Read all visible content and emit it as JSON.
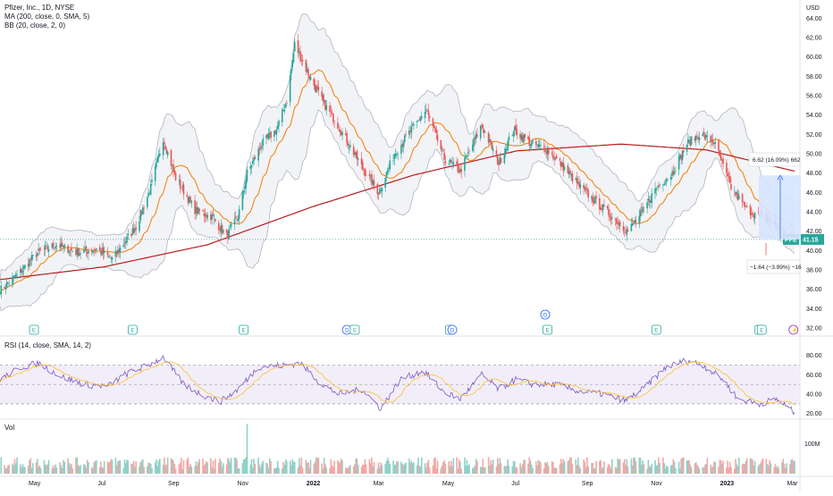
{
  "header": {
    "symbol_title": "Pfizer, Inc., 1D, NYSE",
    "indicators": [
      "MA (200, close, 0, SMA, 5)",
      "BB (20, close, 2, 0)"
    ],
    "currency": "USD"
  },
  "rsi_pane": {
    "title": "RSI (14, close, SMA, 14, 2)",
    "ticks": [
      "80.00",
      "60.00",
      "40.00",
      "20.00"
    ]
  },
  "volume_pane": {
    "title": "Vol",
    "tick": "100M"
  },
  "price_badge": {
    "symbol": "PFE",
    "value": "41.15"
  },
  "measure": {
    "top_label": "6.62 (16.09%) 662",
    "bottom_label": "−1.64 (−3.99%) −16"
  },
  "event_markers": [
    {
      "type": "E",
      "date": "2021-05-01"
    },
    {
      "type": "E",
      "date": "2021-07-27"
    },
    {
      "type": "E",
      "date": "2021-11-02"
    },
    {
      "type": "D",
      "date": "2022-02-01"
    },
    {
      "type": "E",
      "date": "2022-02-08"
    },
    {
      "type": "E",
      "date": "2022-05-03"
    },
    {
      "type": "D",
      "date": "2022-05-05"
    },
    {
      "type": "D",
      "date": "2022-07-26"
    },
    {
      "type": "E",
      "date": "2022-07-28"
    },
    {
      "type": "E",
      "date": "2022-11-01"
    },
    {
      "type": "E",
      "date": "2023-01-31"
    },
    {
      "type": "E",
      "date": "2023-02-02"
    },
    {
      "type": "split",
      "date": "2023-03-02"
    }
  ],
  "colors": {
    "up": "#26a69a",
    "down": "#ef5350",
    "ma": "#b71c1c",
    "bb_basis": "#f57c00",
    "bb_band": "#b2b5be",
    "rsi_line": "#7e57c2",
    "rsi_ma": "#fbc02d",
    "rsi_zone": "#ede7f6",
    "measure_fill": "#d6e4ff",
    "measure_line": "#2962ff",
    "current_line": "#26a69a",
    "axis_text": "#131722",
    "grid": "#f0f3fa"
  },
  "chart_data": {
    "type": "candlestick",
    "title": "Pfizer, Inc., 1D, NYSE",
    "x_ticks": [
      "May",
      "Jul",
      "Sep",
      "Nov",
      "2022",
      "Mar",
      "May",
      "Jul",
      "Sep",
      "Nov",
      "2023",
      "Mar"
    ],
    "x_range": [
      "2021-04-01",
      "2023-03-03"
    ],
    "price_axis": {
      "ticks": [
        "32.00",
        "34.00",
        "36.00",
        "38.00",
        "40.00",
        "42.00",
        "44.00",
        "46.00",
        "48.00",
        "50.00",
        "52.00",
        "54.00",
        "56.00",
        "58.00",
        "60.00",
        "62.00",
        "64.00"
      ],
      "ylim": [
        32,
        64.5
      ]
    },
    "price_keypoints": [
      [
        "2021-04-01",
        35.9
      ],
      [
        "2021-04-20",
        37.9
      ],
      [
        "2021-05-03",
        39.7
      ],
      [
        "2021-05-20",
        40.6
      ],
      [
        "2021-06-08",
        39.8
      ],
      [
        "2021-06-25",
        40.2
      ],
      [
        "2021-07-09",
        39.1
      ],
      [
        "2021-07-30",
        42.5
      ],
      [
        "2021-08-12",
        46.5
      ],
      [
        "2021-08-23",
        51.6
      ],
      [
        "2021-09-03",
        47.5
      ],
      [
        "2021-09-20",
        44.2
      ],
      [
        "2021-10-05",
        43.5
      ],
      [
        "2021-10-18",
        41.5
      ],
      [
        "2021-10-28",
        43.5
      ],
      [
        "2021-11-05",
        48.0
      ],
      [
        "2021-11-18",
        51.0
      ],
      [
        "2021-12-01",
        52.5
      ],
      [
        "2021-12-10",
        55.5
      ],
      [
        "2021-12-17",
        61.3
      ],
      [
        "2021-12-28",
        58.5
      ],
      [
        "2022-01-10",
        55.5
      ],
      [
        "2022-01-25",
        52.8
      ],
      [
        "2022-02-15",
        48.5
      ],
      [
        "2022-03-01",
        46.0
      ],
      [
        "2022-03-15",
        50.0
      ],
      [
        "2022-03-30",
        52.5
      ],
      [
        "2022-04-12",
        54.5
      ],
      [
        "2022-04-28",
        49.5
      ],
      [
        "2022-05-12",
        48.2
      ],
      [
        "2022-05-31",
        53.0
      ],
      [
        "2022-06-15",
        49.0
      ],
      [
        "2022-06-28",
        52.5
      ],
      [
        "2022-07-14",
        51.0
      ],
      [
        "2022-07-27",
        50.5
      ],
      [
        "2022-08-12",
        48.5
      ],
      [
        "2022-08-26",
        46.5
      ],
      [
        "2022-09-09",
        45.0
      ],
      [
        "2022-09-23",
        43.5
      ],
      [
        "2022-10-07",
        42.0
      ],
      [
        "2022-10-17",
        43.5
      ],
      [
        "2022-11-01",
        46.5
      ],
      [
        "2022-11-15",
        48.0
      ],
      [
        "2022-11-28",
        51.0
      ],
      [
        "2022-12-09",
        52.0
      ],
      [
        "2022-12-22",
        51.2
      ],
      [
        "2023-01-06",
        46.5
      ],
      [
        "2023-01-20",
        44.2
      ],
      [
        "2023-02-03",
        43.5
      ],
      [
        "2023-02-17",
        42.5
      ],
      [
        "2023-03-02",
        41.15
      ]
    ],
    "ma_200_keypoints": [
      [
        "2021-04-01",
        37.0
      ],
      [
        "2021-07-01",
        38.3
      ],
      [
        "2021-10-01",
        40.6
      ],
      [
        "2022-01-01",
        44.5
      ],
      [
        "2022-04-01",
        47.8
      ],
      [
        "2022-07-01",
        50.3
      ],
      [
        "2022-10-01",
        51.0
      ],
      [
        "2022-12-15",
        50.4
      ],
      [
        "2023-03-03",
        48.2
      ]
    ],
    "bb_width": 2.2,
    "rsi": {
      "ylim": [
        17,
        87
      ],
      "upper": 70,
      "lower": 30,
      "mid": 50,
      "keypoints": [
        [
          "2021-04-01",
          55
        ],
        [
          "2021-04-20",
          68
        ],
        [
          "2021-05-05",
          72
        ],
        [
          "2021-05-25",
          58
        ],
        [
          "2021-06-15",
          50
        ],
        [
          "2021-07-05",
          48
        ],
        [
          "2021-07-20",
          60
        ],
        [
          "2021-08-10",
          70
        ],
        [
          "2021-08-23",
          78
        ],
        [
          "2021-09-10",
          50
        ],
        [
          "2021-09-25",
          40
        ],
        [
          "2021-10-12",
          32
        ],
        [
          "2021-10-28",
          45
        ],
        [
          "2021-11-15",
          68
        ],
        [
          "2021-12-10",
          70
        ],
        [
          "2021-12-22",
          72
        ],
        [
          "2022-01-10",
          50
        ],
        [
          "2022-01-25",
          40
        ],
        [
          "2022-02-15",
          45
        ],
        [
          "2022-03-03",
          25
        ],
        [
          "2022-03-20",
          55
        ],
        [
          "2022-04-10",
          64
        ],
        [
          "2022-04-28",
          42
        ],
        [
          "2022-05-12",
          35
        ],
        [
          "2022-05-31",
          60
        ],
        [
          "2022-06-15",
          45
        ],
        [
          "2022-06-30",
          55
        ],
        [
          "2022-07-15",
          50
        ],
        [
          "2022-08-05",
          50
        ],
        [
          "2022-08-25",
          43
        ],
        [
          "2022-09-15",
          40
        ],
        [
          "2022-10-05",
          33
        ],
        [
          "2022-10-20",
          45
        ],
        [
          "2022-11-10",
          68
        ],
        [
          "2022-11-28",
          75
        ],
        [
          "2022-12-12",
          70
        ],
        [
          "2022-12-30",
          55
        ],
        [
          "2023-01-12",
          35
        ],
        [
          "2023-01-31",
          30
        ],
        [
          "2023-02-15",
          35
        ],
        [
          "2023-03-02",
          22
        ]
      ]
    },
    "volume": {
      "base": 28,
      "spike_date": "2021-11-05",
      "spike_value": 130
    }
  }
}
